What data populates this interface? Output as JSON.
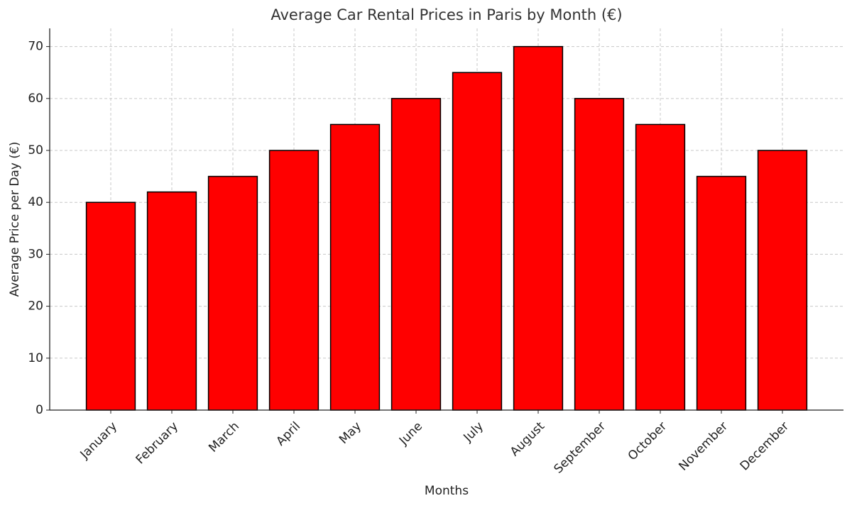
{
  "chart_data": {
    "type": "bar",
    "title": "Average Car Rental Prices in Paris by Month (€)",
    "x_label": "Months",
    "y_label": "Average Price per Day (€)",
    "categories": [
      "January",
      "February",
      "March",
      "April",
      "May",
      "June",
      "July",
      "August",
      "September",
      "October",
      "November",
      "December"
    ],
    "values": [
      40,
      42,
      45,
      50,
      55,
      60,
      65,
      70,
      60,
      55,
      45,
      50
    ],
    "color": "#ff0000",
    "edgecolor": "#000000",
    "ylim": [
      0,
      73.5
    ],
    "yticks": [
      0,
      10,
      20,
      30,
      40,
      50,
      60,
      70
    ],
    "grid": true
  }
}
